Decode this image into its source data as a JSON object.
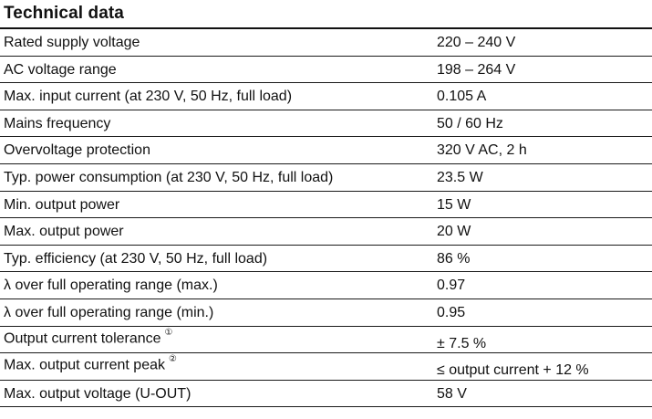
{
  "title": "Technical data",
  "rows": [
    {
      "label": "Rated supply voltage",
      "value": "220 – 240 V"
    },
    {
      "label": "AC voltage range",
      "value": "198 – 264 V"
    },
    {
      "label": "Max. input current (at 230 V, 50 Hz, full load)",
      "value": "0.105 A"
    },
    {
      "label": "Mains frequency",
      "value": "50 / 60 Hz"
    },
    {
      "label": "Overvoltage protection",
      "value": "320 V AC, 2 h"
    },
    {
      "label": "Typ. power consumption (at 230 V, 50 Hz, full load)",
      "value": "23.5 W"
    },
    {
      "label": "Min. output power",
      "value": "15 W"
    },
    {
      "label": "Max. output power",
      "value": "20 W"
    },
    {
      "label": "Typ. efficiency (at 230 V, 50 Hz, full load)",
      "value": "86 %"
    },
    {
      "label": "λ over full operating range (max.)",
      "value": "0.97"
    },
    {
      "label": "λ over full operating range (min.)",
      "value": "0.95"
    },
    {
      "label": "Output current tolerance",
      "footnote": "①",
      "value": "± 7.5 %"
    },
    {
      "label": "Max. output current peak",
      "footnote": "②",
      "value": "≤ output current + 12 %"
    },
    {
      "label": "Max. output voltage (U-OUT)",
      "value": "58 V"
    }
  ]
}
